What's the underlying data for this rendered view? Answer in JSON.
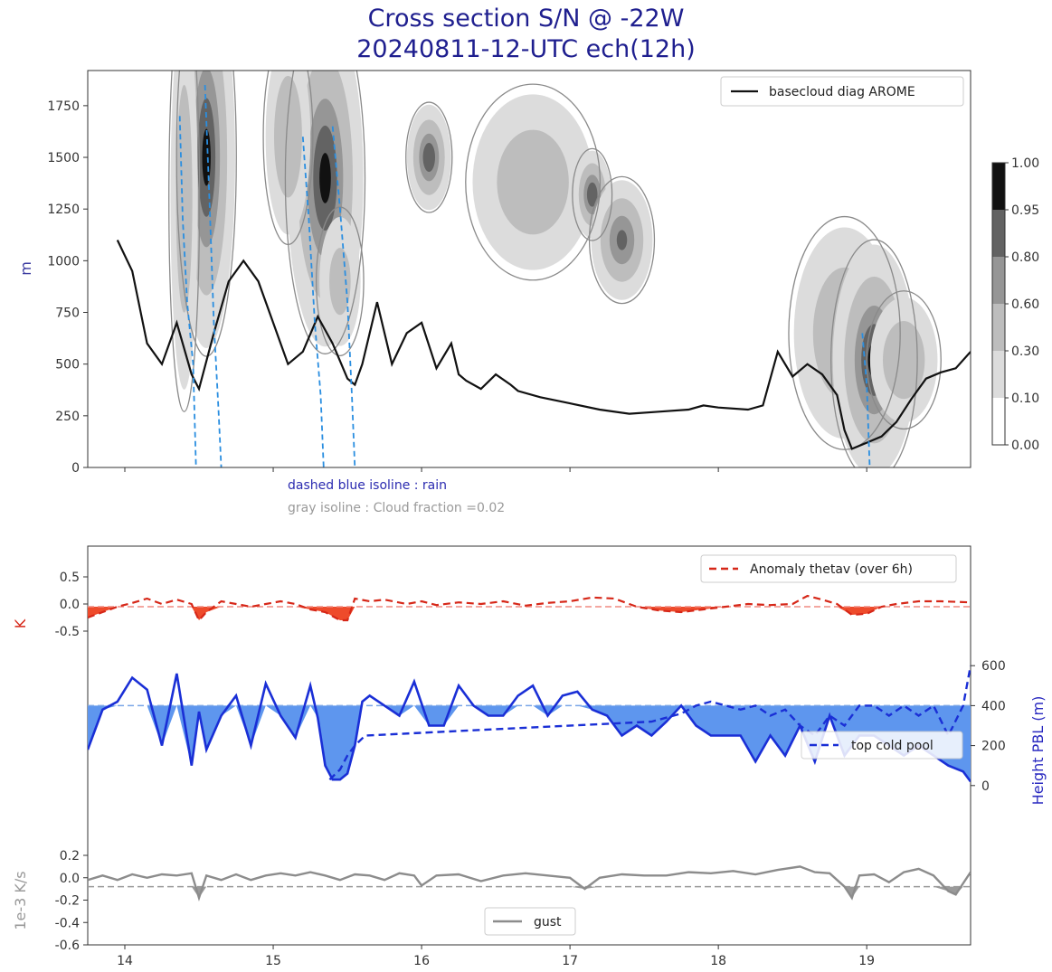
{
  "title_line1": "Cross section S/N @ -22W",
  "title_line2": "20240811-12-UTC ech(12h)",
  "chart_data": [
    {
      "type": "heatmap",
      "title": "Cross section S/N @ -22W 20240811-12-UTC ech(12h)",
      "ylabel": "m",
      "ylim": [
        0,
        1920
      ],
      "xlim": [
        13.75,
        19.7
      ],
      "y_ticks": [
        "0",
        "250",
        "500",
        "750",
        "1000",
        "1250",
        "1500",
        "1750"
      ],
      "legend": {
        "label": "basecloud diag AROME",
        "position": "top-right"
      },
      "annotations": [
        "dashed blue isoline : rain",
        "gray isoline : Cloud fraction =0.02"
      ],
      "colorbar": {
        "levels": [
          0.0,
          0.1,
          0.3,
          0.6,
          0.8,
          0.95,
          1.0
        ],
        "labels": [
          "0.00",
          "0.10",
          "0.30",
          "0.60",
          "0.80",
          "0.95",
          "1.00"
        ],
        "colors": [
          "#ffffff",
          "#dcdcdc",
          "#bdbdbd",
          "#969696",
          "#636363",
          "#111111"
        ]
      },
      "basecloud_base": [
        [
          13.95,
          1100
        ],
        [
          14.05,
          950
        ],
        [
          14.15,
          600
        ],
        [
          14.25,
          500
        ],
        [
          14.35,
          700
        ],
        [
          14.45,
          450
        ],
        [
          14.5,
          380
        ],
        [
          14.6,
          650
        ],
        [
          14.7,
          900
        ],
        [
          14.8,
          1000
        ],
        [
          14.9,
          900
        ],
        [
          15.0,
          700
        ],
        [
          15.1,
          500
        ],
        [
          15.2,
          560
        ],
        [
          15.3,
          730
        ],
        [
          15.4,
          600
        ],
        [
          15.5,
          430
        ],
        [
          15.55,
          400
        ],
        [
          15.6,
          500
        ],
        [
          15.7,
          800
        ],
        [
          15.8,
          500
        ],
        [
          15.9,
          650
        ],
        [
          16.0,
          700
        ],
        [
          16.1,
          480
        ],
        [
          16.2,
          600
        ],
        [
          16.25,
          450
        ],
        [
          16.3,
          420
        ],
        [
          16.4,
          380
        ],
        [
          16.5,
          450
        ],
        [
          16.6,
          400
        ],
        [
          16.65,
          370
        ],
        [
          16.8,
          340
        ],
        [
          17.0,
          310
        ],
        [
          17.2,
          280
        ],
        [
          17.4,
          260
        ],
        [
          17.6,
          270
        ],
        [
          17.8,
          280
        ],
        [
          17.9,
          300
        ],
        [
          18.0,
          290
        ],
        [
          18.2,
          280
        ],
        [
          18.3,
          300
        ],
        [
          18.4,
          560
        ],
        [
          18.5,
          440
        ],
        [
          18.6,
          500
        ],
        [
          18.7,
          450
        ],
        [
          18.8,
          350
        ],
        [
          18.85,
          180
        ],
        [
          18.9,
          90
        ],
        [
          19.0,
          120
        ],
        [
          19.1,
          150
        ],
        [
          19.2,
          220
        ],
        [
          19.3,
          330
        ],
        [
          19.4,
          430
        ],
        [
          19.5,
          460
        ],
        [
          19.6,
          480
        ],
        [
          19.7,
          560
        ]
      ],
      "cloud_cells": [
        {
          "x": 14.55,
          "y": 1500,
          "sx": 0.09,
          "sy": 430,
          "peak": 1.0
        },
        {
          "x": 14.4,
          "y": 1300,
          "sx": 0.05,
          "sy": 500,
          "peak": 0.55
        },
        {
          "x": 15.35,
          "y": 1400,
          "sx": 0.12,
          "sy": 380,
          "peak": 1.0
        },
        {
          "x": 15.1,
          "y": 1600,
          "sx": 0.08,
          "sy": 250,
          "peak": 0.6
        },
        {
          "x": 15.45,
          "y": 900,
          "sx": 0.08,
          "sy": 180,
          "peak": 0.45
        },
        {
          "x": 16.05,
          "y": 1500,
          "sx": 0.07,
          "sy": 120,
          "peak": 0.95
        },
        {
          "x": 16.75,
          "y": 1380,
          "sx": 0.22,
          "sy": 230,
          "peak": 0.55
        },
        {
          "x": 17.15,
          "y": 1320,
          "sx": 0.06,
          "sy": 100,
          "peak": 0.95
        },
        {
          "x": 17.35,
          "y": 1100,
          "sx": 0.1,
          "sy": 140,
          "peak": 0.85
        },
        {
          "x": 18.85,
          "y": 650,
          "sx": 0.18,
          "sy": 270,
          "peak": 0.6
        },
        {
          "x": 19.05,
          "y": 520,
          "sx": 0.13,
          "sy": 260,
          "peak": 1.0
        },
        {
          "x": 19.25,
          "y": 520,
          "sx": 0.12,
          "sy": 160,
          "peak": 0.6
        }
      ],
      "rain_lines": [
        [
          [
            14.37,
            1700
          ],
          [
            14.39,
            1200
          ],
          [
            14.42,
            800
          ],
          [
            14.46,
            500
          ],
          [
            14.48,
            0
          ]
        ],
        [
          [
            14.54,
            1850
          ],
          [
            14.57,
            1300
          ],
          [
            14.6,
            700
          ],
          [
            14.63,
            300
          ],
          [
            14.65,
            0
          ]
        ],
        [
          [
            15.2,
            1600
          ],
          [
            15.24,
            1200
          ],
          [
            15.28,
            700
          ],
          [
            15.32,
            350
          ],
          [
            15.34,
            0
          ]
        ],
        [
          [
            15.4,
            1650
          ],
          [
            15.45,
            1250
          ],
          [
            15.5,
            800
          ],
          [
            15.53,
            350
          ],
          [
            15.55,
            0
          ]
        ],
        [
          [
            18.97,
            650
          ],
          [
            19.0,
            400
          ],
          [
            19.02,
            0
          ]
        ]
      ]
    },
    {
      "type": "line",
      "legend": {
        "labels": [
          "Anomaly thetav (over 6h)",
          "top cold pool",
          "gust"
        ],
        "position": "top-right"
      },
      "panel_thetav": {
        "ylabel": "K",
        "ylim": [
          -0.9,
          0.9
        ],
        "y_ticks": [
          "0.5",
          "0.0",
          "-0.5"
        ],
        "reference": -0.05,
        "x": [
          13.75,
          13.85,
          13.95,
          14.05,
          14.15,
          14.25,
          14.35,
          14.45,
          14.5,
          14.55,
          14.65,
          14.75,
          14.85,
          14.95,
          15.05,
          15.15,
          15.25,
          15.35,
          15.45,
          15.5,
          15.55,
          15.65,
          15.75,
          15.9,
          16.0,
          16.1,
          16.25,
          16.4,
          16.55,
          16.7,
          16.85,
          17.0,
          17.15,
          17.3,
          17.45,
          17.6,
          17.75,
          17.9,
          18.05,
          18.2,
          18.35,
          18.5,
          18.6,
          18.7,
          18.8,
          18.9,
          19.0,
          19.1,
          19.2,
          19.35,
          19.5,
          19.7
        ],
        "values": [
          -0.25,
          -0.15,
          -0.05,
          0.02,
          0.1,
          0.0,
          0.08,
          0.0,
          -0.3,
          -0.15,
          0.05,
          0.0,
          -0.05,
          0.0,
          0.05,
          0.0,
          -0.1,
          -0.15,
          -0.3,
          -0.3,
          0.1,
          0.05,
          0.08,
          0.0,
          0.05,
          -0.02,
          0.03,
          0.0,
          0.05,
          -0.03,
          0.02,
          0.05,
          0.12,
          0.1,
          -0.05,
          -0.12,
          -0.15,
          -0.1,
          -0.05,
          0.0,
          -0.02,
          0.0,
          0.15,
          0.08,
          0.0,
          -0.2,
          -0.18,
          -0.05,
          0.0,
          0.05,
          0.05,
          0.03
        ]
      },
      "panel_pbl": {
        "ylabel": "Height PBL (m)",
        "ylim": [
          -200,
          800
        ],
        "y_ticks": [
          "0",
          "200",
          "400",
          "600"
        ],
        "reference": 400,
        "x": [
          13.75,
          13.85,
          13.95,
          14.05,
          14.15,
          14.25,
          14.35,
          14.45,
          14.5,
          14.55,
          14.65,
          14.75,
          14.85,
          14.95,
          15.05,
          15.15,
          15.25,
          15.3,
          15.35,
          15.4,
          15.45,
          15.5,
          15.55,
          15.6,
          15.65,
          15.75,
          15.85,
          15.95,
          16.05,
          16.15,
          16.25,
          16.35,
          16.45,
          16.55,
          16.65,
          16.75,
          16.85,
          16.95,
          17.05,
          17.15,
          17.25,
          17.35,
          17.45,
          17.55,
          17.65,
          17.75,
          17.85,
          17.95,
          18.05,
          18.15,
          18.25,
          18.35,
          18.45,
          18.55,
          18.65,
          18.75,
          18.85,
          18.95,
          19.05,
          19.15,
          19.25,
          19.35,
          19.45,
          19.55,
          19.65,
          19.7
        ],
        "values": [
          180,
          380,
          420,
          540,
          480,
          200,
          560,
          100,
          370,
          180,
          350,
          450,
          200,
          510,
          350,
          240,
          500,
          340,
          100,
          30,
          30,
          60,
          200,
          420,
          450,
          400,
          350,
          520,
          300,
          300,
          500,
          400,
          350,
          350,
          450,
          500,
          350,
          450,
          470,
          380,
          350,
          250,
          300,
          250,
          320,
          400,
          300,
          250,
          250,
          250,
          120,
          250,
          150,
          300,
          120,
          350,
          150,
          250,
          250,
          200,
          150,
          200,
          150,
          100,
          70,
          20
        ],
        "cold_pool_x": [
          15.38,
          15.45,
          15.5,
          15.55,
          15.62,
          17.55,
          17.65,
          17.75,
          17.85,
          17.95,
          18.05,
          18.15,
          18.25,
          18.35,
          18.45,
          18.55,
          18.65,
          18.75,
          18.85,
          18.95,
          19.05,
          19.15,
          19.25,
          19.35,
          19.45,
          19.55,
          19.65,
          19.7
        ],
        "cold_pool_values": [
          30,
          80,
          150,
          200,
          250,
          320,
          340,
          360,
          400,
          420,
          400,
          380,
          400,
          350,
          380,
          300,
          250,
          350,
          300,
          400,
          400,
          350,
          400,
          350,
          400,
          250,
          400,
          600
        ]
      },
      "panel_gust": {
        "ylabel": "1e-3 K/s",
        "ylim": [
          -0.6,
          0.2
        ],
        "y_ticks": [
          "0.2",
          "0.0",
          "-0.2",
          "-0.4",
          "-0.6"
        ],
        "reference": -0.08,
        "x": [
          13.75,
          13.85,
          13.95,
          14.05,
          14.15,
          14.25,
          14.35,
          14.45,
          14.5,
          14.55,
          14.65,
          14.75,
          14.85,
          14.95,
          15.05,
          15.15,
          15.25,
          15.35,
          15.45,
          15.55,
          15.65,
          15.75,
          15.85,
          15.95,
          16.0,
          16.1,
          16.25,
          16.4,
          16.55,
          16.7,
          16.85,
          17.0,
          17.1,
          17.2,
          17.35,
          17.5,
          17.65,
          17.8,
          17.95,
          18.1,
          18.25,
          18.4,
          18.55,
          18.65,
          18.75,
          18.85,
          18.9,
          18.95,
          19.05,
          19.15,
          19.25,
          19.35,
          19.45,
          19.55,
          19.6,
          19.65,
          19.7
        ],
        "values": [
          -0.02,
          0.02,
          -0.02,
          0.03,
          0.0,
          0.03,
          0.02,
          0.04,
          -0.18,
          0.02,
          -0.02,
          0.03,
          -0.02,
          0.02,
          0.04,
          0.02,
          0.05,
          0.02,
          -0.02,
          0.03,
          0.02,
          -0.02,
          0.04,
          0.02,
          -0.07,
          0.02,
          0.03,
          -0.03,
          0.02,
          0.04,
          0.02,
          0.0,
          -0.1,
          0.0,
          0.03,
          0.02,
          0.02,
          0.05,
          0.04,
          0.06,
          0.03,
          0.07,
          0.1,
          0.05,
          0.04,
          -0.08,
          -0.18,
          0.02,
          0.03,
          -0.04,
          0.05,
          0.08,
          0.02,
          -0.12,
          -0.15,
          -0.05,
          0.05
        ]
      },
      "x_ticks": [
        "14",
        "15",
        "16",
        "17",
        "18",
        "19"
      ],
      "xlim": [
        13.75,
        19.7
      ]
    }
  ]
}
